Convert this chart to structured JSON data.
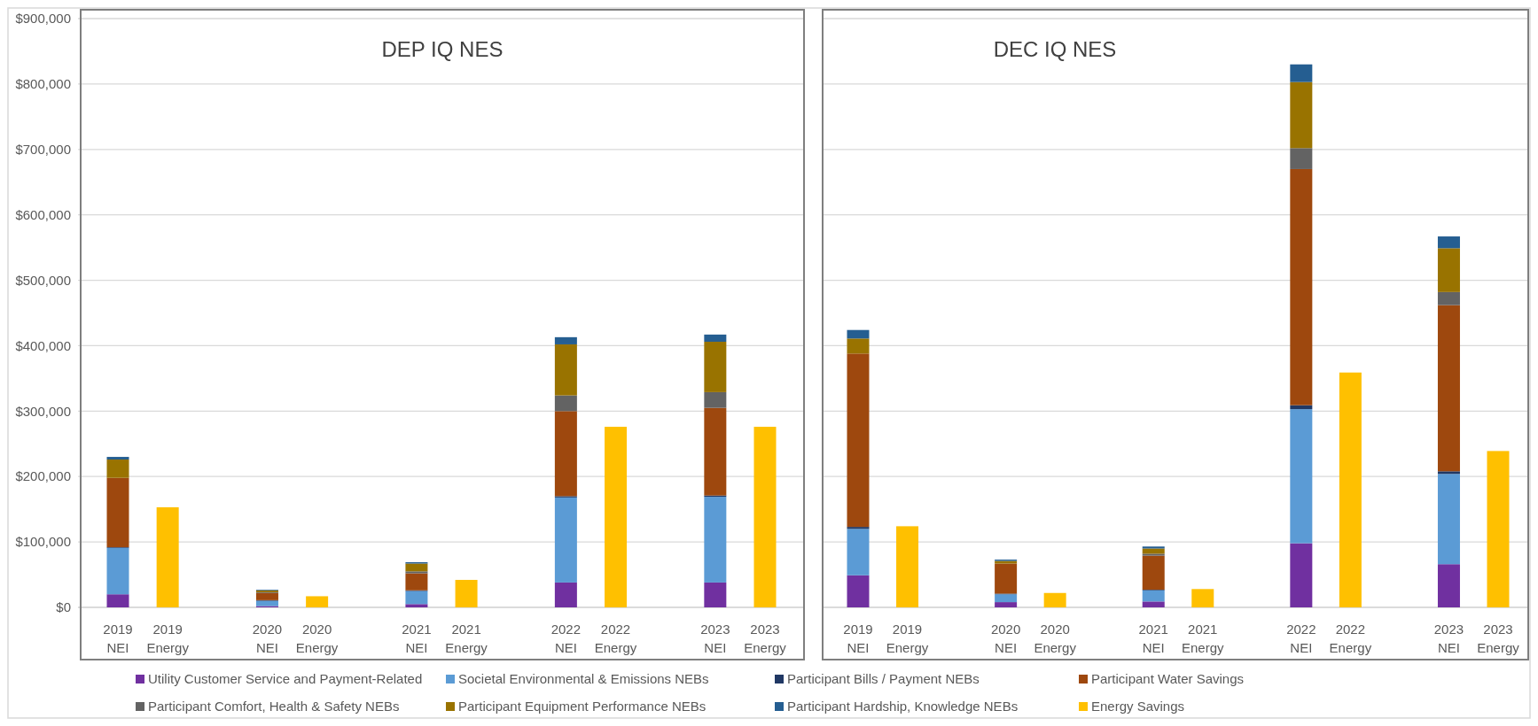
{
  "chart_data": [
    {
      "type": "bar",
      "title": "DEP IQ NES",
      "stacked": true,
      "grid": "y",
      "legend": "bottom",
      "categories": [
        "2019 NEI",
        "2019 Energy",
        "2020 NEI",
        "2020 Energy",
        "2021 NEI",
        "2021 Energy",
        "2022 NEI",
        "2022 Energy",
        "2023 NEI",
        "2023 Energy"
      ],
      "ylim": [
        0,
        900000
      ],
      "yticks": [
        {
          "value": 0,
          "label": "$0"
        },
        {
          "value": 100000,
          "label": "$100,000"
        },
        {
          "value": 200000,
          "label": "$200,000"
        },
        {
          "value": 300000,
          "label": "$300,000"
        },
        {
          "value": 400000,
          "label": "$400,000"
        },
        {
          "value": 500000,
          "label": "$500,000"
        },
        {
          "value": 600000,
          "label": "$600,000"
        },
        {
          "value": 700000,
          "label": "$700,000"
        },
        {
          "value": 800000,
          "label": "$800,000"
        },
        {
          "value": 900000,
          "label": "$900,000"
        }
      ],
      "series": [
        {
          "name": "Utility Customer Service and Payment-Related",
          "color": "#7030a0",
          "values": [
            20000,
            null,
            2000,
            null,
            5000,
            null,
            38000,
            null,
            38000,
            null
          ]
        },
        {
          "name": "Societal Environmental & Emissions NEBs",
          "color": "#5b9bd5",
          "values": [
            71000,
            null,
            8000,
            null,
            20000,
            null,
            130000,
            null,
            131000,
            null
          ]
        },
        {
          "name": "Participant Bills / Payment NEBs",
          "color": "#203864",
          "values": [
            1000,
            null,
            1000,
            null,
            1000,
            null,
            2000,
            null,
            2000,
            null
          ]
        },
        {
          "name": "Participant Water Savings",
          "color": "#9e480e",
          "values": [
            106000,
            null,
            11000,
            null,
            26000,
            null,
            130000,
            null,
            134000,
            null
          ]
        },
        {
          "name": "Participant Comfort, Health & Safety NEBs",
          "color": "#636363",
          "values": [
            0,
            null,
            1000,
            null,
            3000,
            null,
            24000,
            null,
            24000,
            null
          ]
        },
        {
          "name": "Participant Equipment Performance NEBs",
          "color": "#997300",
          "values": [
            28000,
            null,
            3000,
            null,
            12000,
            null,
            78000,
            null,
            77000,
            null
          ]
        },
        {
          "name": "Participant Hardship, Knowledge NEBs",
          "color": "#255e91",
          "values": [
            4000,
            null,
            1000,
            null,
            2000,
            null,
            11000,
            null,
            11000,
            null
          ]
        },
        {
          "name": "Energy Savings",
          "color": "#ffc000",
          "values": [
            null,
            153000,
            null,
            17000,
            null,
            42000,
            null,
            276000,
            null,
            276000
          ]
        }
      ]
    },
    {
      "type": "bar",
      "title": "DEC IQ NES",
      "stacked": true,
      "grid": "y",
      "tick_labels": "x",
      "categories": [
        "2019 NEI",
        "2019 Energy",
        "2020 NEI",
        "2020 Energy",
        "2021 NEI",
        "2021 Energy",
        "2022 NEI",
        "2022 Energy",
        "2023 NEI",
        "2023 Energy"
      ],
      "ylim": [
        0,
        900000
      ],
      "yticks": [
        {
          "value": 0,
          "label": null
        },
        {
          "value": 100000,
          "label": null
        },
        {
          "value": 200000,
          "label": null
        },
        {
          "value": 300000,
          "label": null
        },
        {
          "value": 400000,
          "label": null
        },
        {
          "value": 500000,
          "label": null
        },
        {
          "value": 600000,
          "label": null
        },
        {
          "value": 700000,
          "label": null
        },
        {
          "value": 800000,
          "label": null
        },
        {
          "value": 900000,
          "label": null
        }
      ],
      "series": [
        {
          "color": "#7030a0",
          "values": [
            49000,
            null,
            8000,
            null,
            9000,
            null,
            98000,
            null,
            66000,
            null
          ]
        },
        {
          "color": "#5b9bd5",
          "values": [
            71000,
            null,
            12000,
            null,
            17000,
            null,
            205000,
            null,
            138000,
            null
          ]
        },
        {
          "color": "#203864",
          "values": [
            3000,
            null,
            1000,
            null,
            1000,
            null,
            6000,
            null,
            4000,
            null
          ]
        },
        {
          "color": "#9e480e",
          "values": [
            265000,
            null,
            46000,
            null,
            52000,
            null,
            361000,
            null,
            254000,
            null
          ]
        },
        {
          "color": "#636363",
          "values": [
            0,
            null,
            null,
            null,
            3000,
            null,
            32000,
            null,
            20000,
            null
          ]
        },
        {
          "color": "#997300",
          "values": [
            23000,
            null,
            4000,
            null,
            8000,
            null,
            101000,
            null,
            67000,
            null
          ]
        },
        {
          "color": "#255e91",
          "values": [
            13000,
            null,
            2000,
            null,
            3000,
            null,
            27000,
            null,
            18000,
            null
          ]
        },
        {
          "color": "#ffc000",
          "values": [
            null,
            124000,
            null,
            22000,
            null,
            28000,
            null,
            359000,
            null,
            239000
          ]
        }
      ]
    }
  ]
}
